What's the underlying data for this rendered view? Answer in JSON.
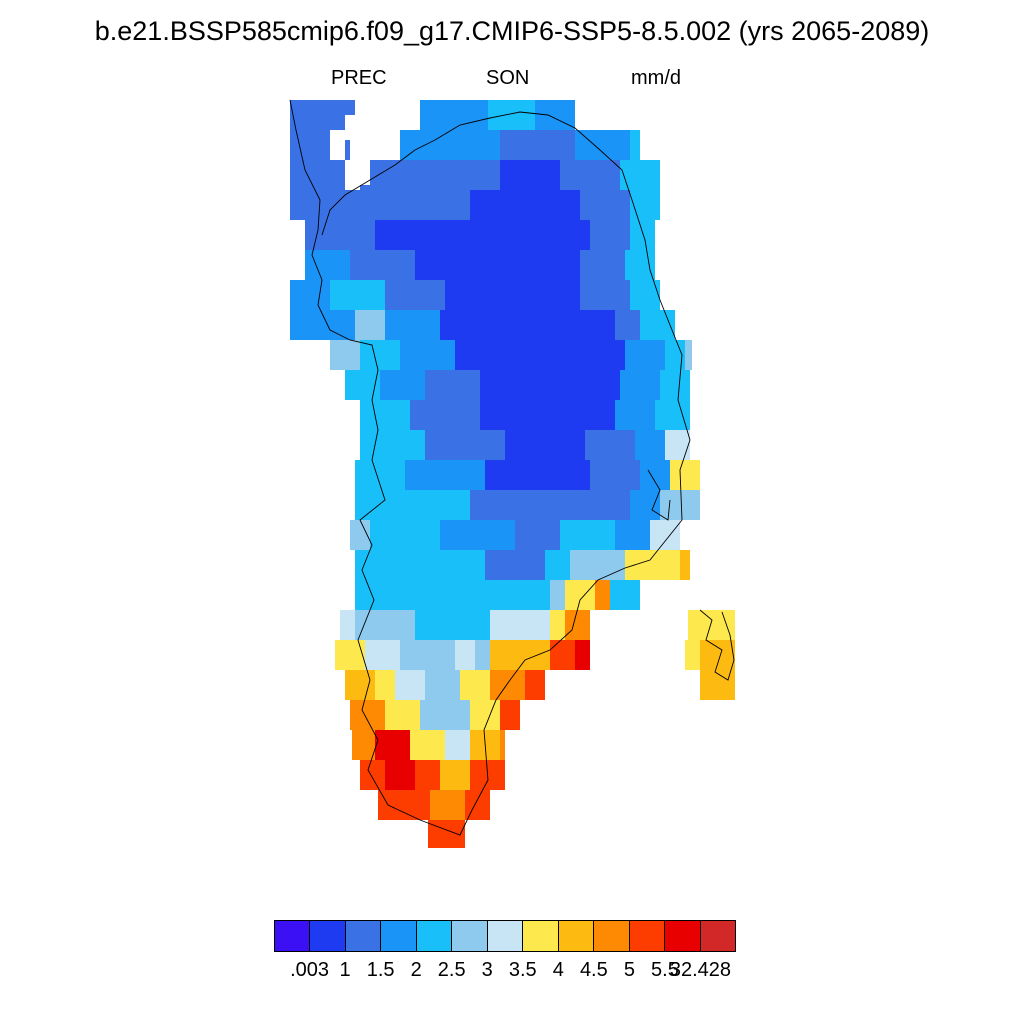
{
  "title": "b.e21.BSSP585cmip6.f09_g17.CMIP6-SSP5-8.5.002 (yrs 2065-2089)",
  "variable": "PREC",
  "season": "SON",
  "units": "mm/d",
  "colorbar": {
    "colors": [
      "#3c10f5",
      "#1f3bf2",
      "#3a72e6",
      "#1b94f7",
      "#18bff9",
      "#8ec9ee",
      "#c8e5f6",
      "#fde84e",
      "#fdbb12",
      "#fd8a02",
      "#fd3c00",
      "#e80000",
      "#d32828"
    ],
    "labels": [
      ".003",
      "1",
      "1.5",
      "2",
      "2.5",
      "3",
      "3.5",
      "4",
      "4.5",
      "5",
      "5.5",
      "32.428"
    ]
  }
}
